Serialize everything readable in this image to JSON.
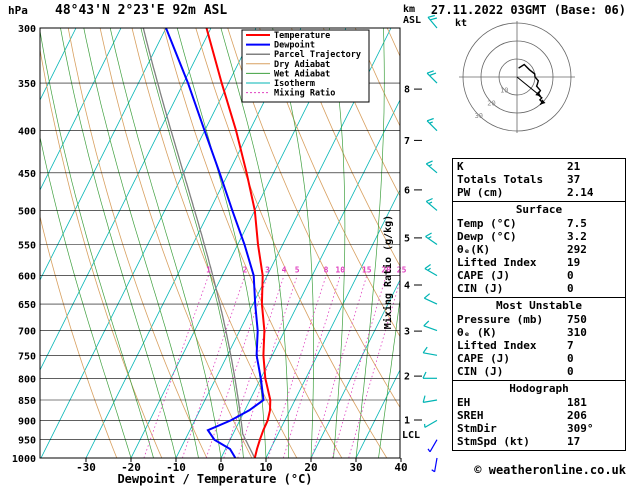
{
  "header": {
    "station_title": "48°43'N 2°23'E 92m ASL",
    "datetime": "27.11.2022 03GMT (Base: 06)",
    "pressure_unit": "hPa",
    "km_label": "km",
    "asl_label": "ASL"
  },
  "footer": {
    "copyright": "© weatheronline.co.uk"
  },
  "chart_data": {
    "type": "skewt-logp-sounding",
    "temp_axis_label": "Dewpoint / Temperature (°C)",
    "mixing_ratio_axis_label": "Mixing Ratio (g/kg)",
    "lcl_label": "LCL",
    "pressure_ticks": [
      300,
      350,
      400,
      450,
      500,
      550,
      600,
      650,
      700,
      750,
      800,
      850,
      900,
      950,
      1000
    ],
    "temp_ticks": [
      -30,
      -20,
      -10,
      0,
      10,
      20,
      30,
      40
    ],
    "temp_axis_range_c": [
      -40,
      40
    ],
    "pressure_range_hpa": [
      300,
      1000
    ],
    "km_levels": [
      {
        "km": 8,
        "p": 356
      },
      {
        "km": 7,
        "p": 411
      },
      {
        "km": 6,
        "p": 472
      },
      {
        "km": 5,
        "p": 540
      },
      {
        "km": 4,
        "p": 616
      },
      {
        "km": 3,
        "p": 701
      },
      {
        "km": 2,
        "p": 795
      },
      {
        "km": 1,
        "p": 899
      }
    ],
    "mixing_ratio_values": [
      1,
      2,
      3,
      4,
      5,
      8,
      10,
      15,
      20,
      25
    ],
    "colors": {
      "temperature": "#ff0000",
      "dewpoint": "#0000ff",
      "parcel": "#808080",
      "dry_adiabat": "#d8a060",
      "wet_adiabat": "#3fa03f",
      "isotherm": "#00b4b4",
      "mixing_ratio": "#e040c0",
      "barb": "#00b4b4",
      "grid": "#000000"
    },
    "legend": [
      {
        "label": "Temperature",
        "color": "#ff0000",
        "width": 2
      },
      {
        "label": "Dewpoint",
        "color": "#0000ff",
        "width": 2
      },
      {
        "label": "Parcel Trajectory",
        "color": "#808080",
        "width": 1.5
      },
      {
        "label": "Dry Adiabat",
        "color": "#d8a060",
        "width": 1
      },
      {
        "label": "Wet Adiabat",
        "color": "#3fa03f",
        "width": 1
      },
      {
        "label": "Isotherm",
        "color": "#00b4b4",
        "width": 1
      },
      {
        "label": "Mixing Ratio",
        "color": "#e040c0",
        "width": 1,
        "dash": "2,2"
      }
    ],
    "temperature_profile_p_c": [
      [
        1000,
        7.5
      ],
      [
        975,
        7.0
      ],
      [
        950,
        6.6
      ],
      [
        925,
        6.3
      ],
      [
        900,
        6.2
      ],
      [
        875,
        5.6
      ],
      [
        850,
        4.5
      ],
      [
        800,
        1.0
      ],
      [
        750,
        -2.0
      ],
      [
        700,
        -4.5
      ],
      [
        650,
        -8.0
      ],
      [
        600,
        -11.0
      ],
      [
        550,
        -15.5
      ],
      [
        500,
        -20.0
      ],
      [
        450,
        -26.0
      ],
      [
        400,
        -33.0
      ],
      [
        350,
        -41.5
      ],
      [
        300,
        -51.0
      ]
    ],
    "dewpoint_profile_p_c": [
      [
        1000,
        3.2
      ],
      [
        975,
        1.0
      ],
      [
        950,
        -3.5
      ],
      [
        925,
        -6.0
      ],
      [
        900,
        -2.0
      ],
      [
        875,
        1.0
      ],
      [
        850,
        3.0
      ],
      [
        800,
        0.0
      ],
      [
        750,
        -3.5
      ],
      [
        700,
        -6.0
      ],
      [
        650,
        -9.5
      ],
      [
        600,
        -13.0
      ],
      [
        550,
        -18.5
      ],
      [
        500,
        -25.0
      ],
      [
        450,
        -32.0
      ],
      [
        400,
        -40.0
      ],
      [
        350,
        -49.0
      ],
      [
        300,
        -60.0
      ]
    ],
    "parcel_surface": {
      "p": 1000,
      "t": 7.5,
      "td": 3.2
    },
    "wind_barbs": [
      {
        "p": 300,
        "dir": 320,
        "spd": 20,
        "color": "#00b4b4"
      },
      {
        "p": 350,
        "dir": 315,
        "spd": 20,
        "color": "#00b4b4"
      },
      {
        "p": 400,
        "dir": 315,
        "spd": 18,
        "color": "#00b4b4"
      },
      {
        "p": 450,
        "dir": 310,
        "spd": 18,
        "color": "#00b4b4"
      },
      {
        "p": 500,
        "dir": 310,
        "spd": 15,
        "color": "#00b4b4"
      },
      {
        "p": 550,
        "dir": 305,
        "spd": 15,
        "color": "#00b4b4"
      },
      {
        "p": 600,
        "dir": 300,
        "spd": 15,
        "color": "#00b4b4"
      },
      {
        "p": 650,
        "dir": 295,
        "spd": 12,
        "color": "#00b4b4"
      },
      {
        "p": 700,
        "dir": 290,
        "spd": 12,
        "color": "#00b4b4"
      },
      {
        "p": 750,
        "dir": 280,
        "spd": 12,
        "color": "#00b4b4"
      },
      {
        "p": 800,
        "dir": 270,
        "spd": 10,
        "color": "#00b4b4"
      },
      {
        "p": 850,
        "dir": 260,
        "spd": 10,
        "color": "#00b4b4"
      },
      {
        "p": 900,
        "dir": 240,
        "spd": 8,
        "color": "#00b4b4"
      },
      {
        "p": 950,
        "dir": 210,
        "spd": 8,
        "color": "#0000ff"
      },
      {
        "p": 1000,
        "dir": 190,
        "spd": 5,
        "color": "#0000ff"
      }
    ],
    "hodograph": {
      "unit_label": "kt",
      "rings_kt": [
        10,
        20,
        30
      ],
      "storm_dir_deg": 309,
      "storm_speed_kt": 17
    }
  },
  "indices_table": {
    "sections": [
      {
        "header": null,
        "rows": [
          [
            "K",
            "21"
          ],
          [
            "Totals Totals",
            "37"
          ],
          [
            "PW (cm)",
            "2.14"
          ]
        ]
      },
      {
        "header": "Surface",
        "rows": [
          [
            "Temp (°C)",
            "7.5"
          ],
          [
            "Dewp (°C)",
            "3.2"
          ],
          [
            "θₑ(K)",
            "292"
          ],
          [
            "Lifted Index",
            "19"
          ],
          [
            "CAPE (J)",
            "0"
          ],
          [
            "CIN (J)",
            "0"
          ]
        ]
      },
      {
        "header": "Most Unstable",
        "rows": [
          [
            "Pressure (mb)",
            "750"
          ],
          [
            "θₑ (K)",
            "310"
          ],
          [
            "Lifted Index",
            "7"
          ],
          [
            "CAPE (J)",
            "0"
          ],
          [
            "CIN (J)",
            "0"
          ]
        ]
      },
      {
        "header": "Hodograph",
        "rows": [
          [
            "EH",
            "181"
          ],
          [
            "SREH",
            "206"
          ],
          [
            "StmDir",
            "309°"
          ],
          [
            "StmSpd (kt)",
            "17"
          ]
        ]
      }
    ]
  }
}
